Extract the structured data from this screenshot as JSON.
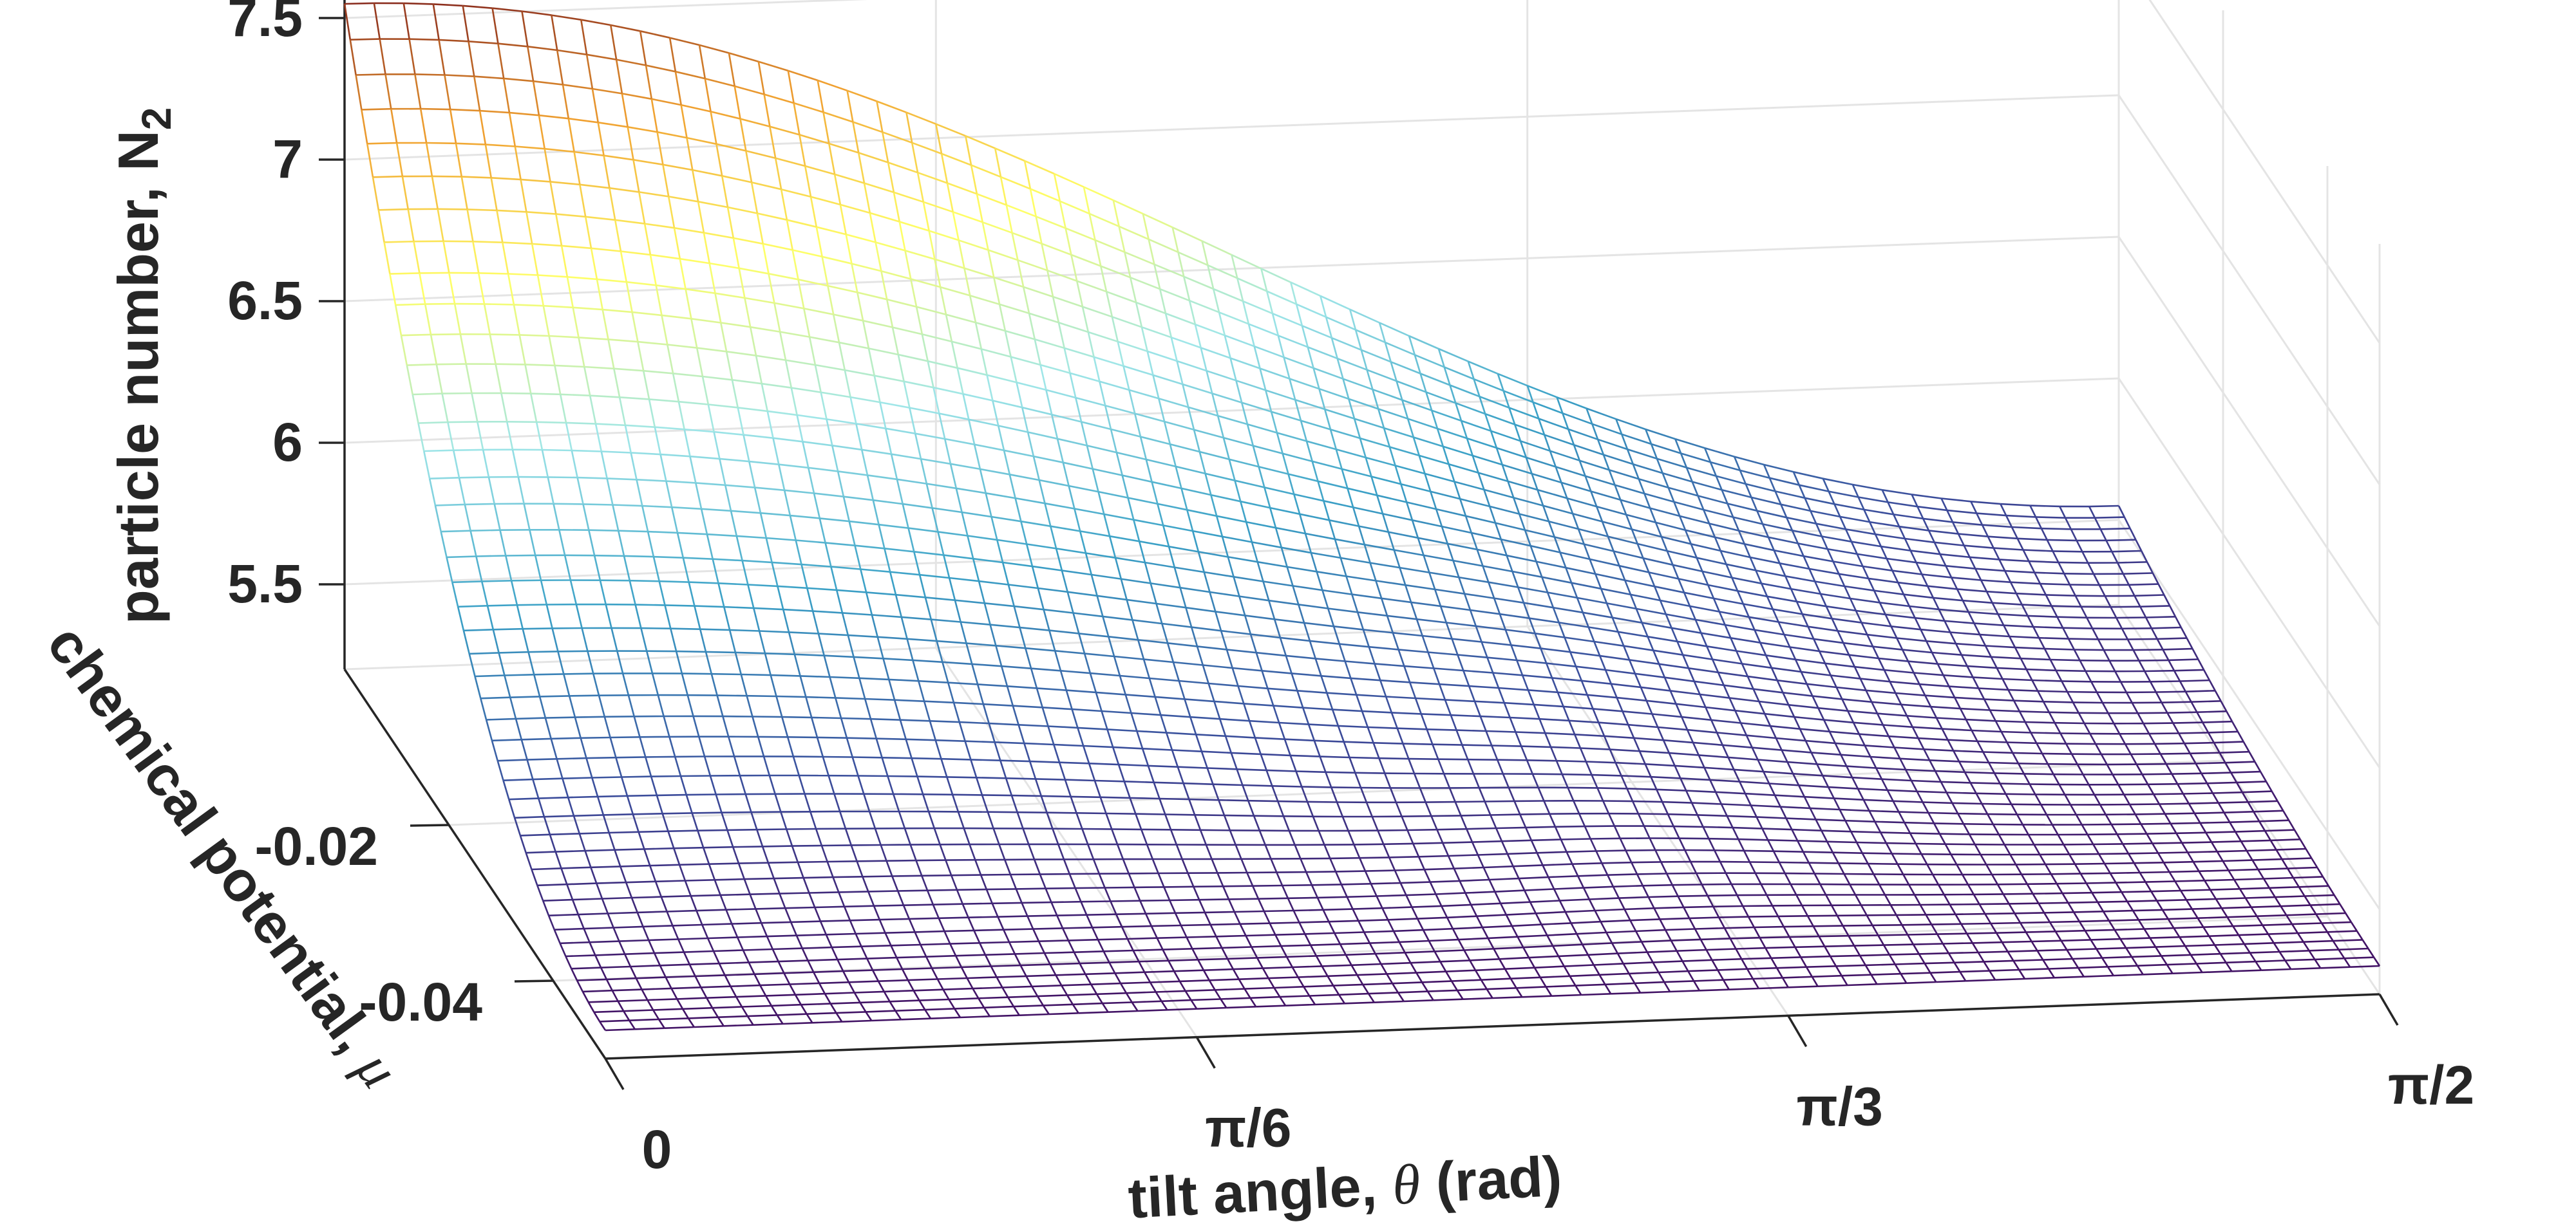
{
  "chart_data": {
    "type": "surface",
    "title": "",
    "zlabel": {
      "text": "particle number, N",
      "sub": "2"
    },
    "ylabel": {
      "text": "chemical potential, ",
      "symbol": "μ"
    },
    "xlabel": {
      "text": "tilt angle, ",
      "symbol": "θ",
      "suffix": " (rad)"
    },
    "x_ticks": [
      {
        "value": 0,
        "label": "0"
      },
      {
        "value": 0.5236,
        "label": "π/6"
      },
      {
        "value": 1.0472,
        "label": "π/3"
      },
      {
        "value": 1.5708,
        "label": "π/2"
      }
    ],
    "y_ticks": [
      {
        "value": -0.02,
        "label": "-0.02"
      },
      {
        "value": -0.04,
        "label": "-0.04"
      }
    ],
    "z_ticks": [
      {
        "value": 5.5,
        "label": "5.5"
      },
      {
        "value": 6,
        "label": "6"
      },
      {
        "value": 6.5,
        "label": "6.5"
      },
      {
        "value": 7,
        "label": "7"
      },
      {
        "value": 7.5,
        "label": "7.5"
      }
    ],
    "xlim": [
      0,
      1.5708
    ],
    "ylim": [
      -0.05,
      0
    ],
    "zlim": [
      5.2,
      7.6
    ],
    "grid": true,
    "colormap": [
      "#440154",
      "#3b4b9a",
      "#3aa0c6",
      "#9fe6e8",
      "#ffff66",
      "#f0a030",
      "#7a1a1a"
    ],
    "surface_corners": {
      "theta_0_mu_max": 7.55,
      "theta_pi2_mu_max": 5.55,
      "theta_0_mu_min": 5.3,
      "theta_pi2_mu_min": 5.3
    }
  }
}
